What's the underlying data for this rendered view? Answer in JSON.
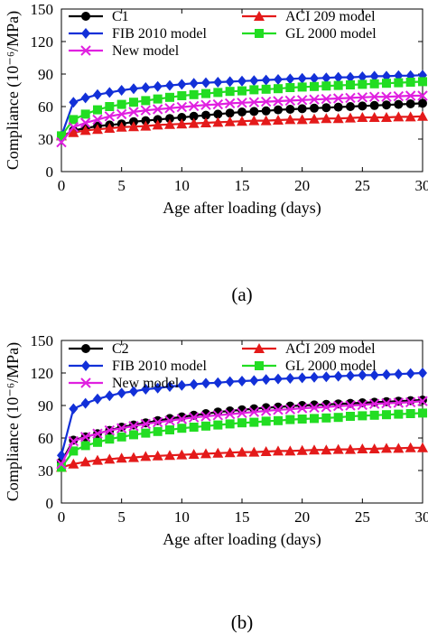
{
  "chart_data": [
    {
      "type": "line",
      "caption": "(a)",
      "xlabel": "Age after loading (days)",
      "ylabel": "Compliance (10⁻⁶/MPa)",
      "xlim": [
        0,
        30
      ],
      "ylim": [
        0,
        150
      ],
      "xticks": [
        0,
        5,
        10,
        15,
        20,
        25,
        30
      ],
      "yticks": [
        0,
        30,
        60,
        90,
        120,
        150
      ],
      "grid": false,
      "legend": "top, two columns",
      "series": [
        {
          "name": "C1",
          "color": "#000000",
          "marker": "circle",
          "x": [
            0,
            1,
            2,
            3,
            4,
            5,
            6,
            7,
            8,
            9,
            10,
            11,
            12,
            13,
            14,
            15,
            16,
            17,
            18,
            19,
            20,
            21,
            22,
            23,
            24,
            25,
            26,
            27,
            28,
            29,
            30
          ],
          "y": [
            32,
            38,
            40,
            42,
            43,
            44,
            46,
            47,
            48,
            49,
            50,
            51,
            52,
            53,
            54,
            55,
            55.5,
            56,
            57,
            57.5,
            58,
            58.5,
            59,
            59.5,
            60,
            60.5,
            61,
            61.5,
            62,
            62.5,
            63
          ]
        },
        {
          "name": "ACI 209 model",
          "color": "#e41a1a",
          "marker": "triangle",
          "x": [
            0,
            1,
            2,
            3,
            4,
            5,
            6,
            7,
            8,
            9,
            10,
            11,
            12,
            13,
            14,
            15,
            16,
            17,
            18,
            19,
            20,
            21,
            22,
            23,
            24,
            25,
            26,
            27,
            28,
            29,
            30
          ],
          "y": [
            33,
            36,
            38,
            39,
            40,
            41,
            41.5,
            42,
            43,
            43.5,
            44,
            44.5,
            45,
            45.5,
            46,
            46.5,
            47,
            47,
            47.5,
            48,
            48,
            48.5,
            49,
            49,
            49.5,
            50,
            50,
            50,
            50.5,
            50.5,
            51
          ]
        },
        {
          "name": "FIB 2010 model",
          "color": "#1230d8",
          "marker": "diamond",
          "x": [
            0,
            1,
            2,
            3,
            4,
            5,
            6,
            7,
            8,
            9,
            10,
            11,
            12,
            13,
            14,
            15,
            16,
            17,
            18,
            19,
            20,
            21,
            22,
            23,
            24,
            25,
            26,
            27,
            28,
            29,
            30
          ],
          "y": [
            33,
            64,
            68,
            71,
            73,
            75,
            76.5,
            77.5,
            78.5,
            79.5,
            80.5,
            81.5,
            82,
            82.5,
            83,
            83.5,
            84,
            84.5,
            85,
            85.5,
            86,
            86,
            86.5,
            87,
            87,
            87.5,
            88,
            88,
            88.5,
            88.5,
            89
          ]
        },
        {
          "name": "GL 2000 model",
          "color": "#22dd22",
          "marker": "square",
          "x": [
            0,
            1,
            2,
            3,
            4,
            5,
            6,
            7,
            8,
            9,
            10,
            11,
            12,
            13,
            14,
            15,
            16,
            17,
            18,
            19,
            20,
            21,
            22,
            23,
            24,
            25,
            26,
            27,
            28,
            29,
            30
          ],
          "y": [
            33,
            48,
            53,
            57,
            60,
            62,
            64,
            65.5,
            67,
            68.5,
            70,
            71,
            72,
            73,
            74,
            74.5,
            75.5,
            76,
            76.5,
            77.5,
            78,
            78.5,
            79,
            79.5,
            80,
            80.5,
            81,
            81.5,
            82,
            82.5,
            83
          ]
        },
        {
          "name": "New model",
          "color": "#e020e0",
          "marker": "x",
          "x": [
            0,
            1,
            2,
            3,
            4,
            5,
            6,
            7,
            8,
            9,
            10,
            11,
            12,
            13,
            14,
            15,
            16,
            17,
            18,
            19,
            20,
            21,
            22,
            23,
            24,
            25,
            26,
            27,
            28,
            29,
            30
          ],
          "y": [
            27,
            41,
            45,
            48,
            51,
            53,
            55,
            56.5,
            57.5,
            58.5,
            59.5,
            60.5,
            61.5,
            62,
            63,
            63.5,
            64,
            64.5,
            65,
            65.5,
            66,
            66.5,
            67,
            67.5,
            68,
            68.5,
            69,
            69,
            69.5,
            70,
            70
          ]
        }
      ]
    },
    {
      "type": "line",
      "caption": "(b)",
      "xlabel": "Age after loading (days)",
      "ylabel": "Compliance (10⁻⁶/MPa)",
      "xlim": [
        0,
        30
      ],
      "ylim": [
        0,
        150
      ],
      "xticks": [
        0,
        5,
        10,
        15,
        20,
        25,
        30
      ],
      "yticks": [
        0,
        30,
        60,
        90,
        120,
        150
      ],
      "grid": false,
      "legend": "top, two columns",
      "series": [
        {
          "name": "C2",
          "color": "#000000",
          "marker": "circle",
          "x": [
            0,
            1,
            2,
            3,
            4,
            5,
            6,
            7,
            8,
            9,
            10,
            11,
            12,
            13,
            14,
            15,
            16,
            17,
            18,
            19,
            20,
            21,
            22,
            23,
            24,
            25,
            26,
            27,
            28,
            29,
            30
          ],
          "y": [
            38,
            58,
            61,
            64,
            67,
            70,
            72,
            74,
            76,
            78,
            79.5,
            81,
            82.5,
            84,
            85,
            86,
            87,
            88,
            88.5,
            89.5,
            90,
            90.5,
            91,
            91.5,
            92,
            92.5,
            93,
            93.5,
            94,
            94.5,
            95
          ]
        },
        {
          "name": "ACI 209 model",
          "color": "#e41a1a",
          "marker": "triangle",
          "x": [
            0,
            1,
            2,
            3,
            4,
            5,
            6,
            7,
            8,
            9,
            10,
            11,
            12,
            13,
            14,
            15,
            16,
            17,
            18,
            19,
            20,
            21,
            22,
            23,
            24,
            25,
            26,
            27,
            28,
            29,
            30
          ],
          "y": [
            33,
            36,
            38,
            39.5,
            40.5,
            41.5,
            42,
            43,
            43.5,
            44,
            44.5,
            45,
            45.5,
            46,
            46.5,
            47,
            47,
            47.5,
            48,
            48,
            48.5,
            49,
            49,
            49.5,
            49.5,
            50,
            50,
            50.5,
            50.5,
            51,
            51
          ]
        },
        {
          "name": "FIB 2010 model",
          "color": "#1230d8",
          "marker": "diamond",
          "x": [
            0,
            1,
            2,
            3,
            4,
            5,
            6,
            7,
            8,
            9,
            10,
            11,
            12,
            13,
            14,
            15,
            16,
            17,
            18,
            19,
            20,
            21,
            22,
            23,
            24,
            25,
            26,
            27,
            28,
            29,
            30
          ],
          "y": [
            44,
            87,
            92,
            96,
            99,
            101.5,
            103,
            105,
            106,
            107.5,
            108.5,
            109.5,
            110.5,
            111,
            112,
            112.5,
            113,
            114,
            114.5,
            115,
            115.5,
            116,
            116.5,
            117,
            117.5,
            118,
            118,
            118.5,
            119,
            119.5,
            120
          ]
        },
        {
          "name": "GL 2000 model",
          "color": "#22dd22",
          "marker": "square",
          "x": [
            0,
            1,
            2,
            3,
            4,
            5,
            6,
            7,
            8,
            9,
            10,
            11,
            12,
            13,
            14,
            15,
            16,
            17,
            18,
            19,
            20,
            21,
            22,
            23,
            24,
            25,
            26,
            27,
            28,
            29,
            30
          ],
          "y": [
            33,
            48,
            53,
            56,
            59,
            61,
            63,
            64.5,
            66,
            67.5,
            69,
            70,
            71,
            72,
            73,
            74,
            74.5,
            75.5,
            76,
            77,
            77.5,
            78,
            78.5,
            79,
            80,
            80.5,
            81,
            81.5,
            82,
            82.5,
            83
          ]
        },
        {
          "name": "New model",
          "color": "#e020e0",
          "marker": "x",
          "x": [
            0,
            1,
            2,
            3,
            4,
            5,
            6,
            7,
            8,
            9,
            10,
            11,
            12,
            13,
            14,
            15,
            16,
            17,
            18,
            19,
            20,
            21,
            22,
            23,
            24,
            25,
            26,
            27,
            28,
            29,
            30
          ],
          "y": [
            36,
            57,
            61,
            64,
            67,
            69,
            71,
            73,
            74.5,
            76,
            77.5,
            79,
            80,
            81,
            82,
            83,
            84,
            85,
            86,
            86.5,
            87.5,
            88,
            88.5,
            89.5,
            90,
            90.5,
            91.5,
            92,
            92.5,
            93,
            94
          ]
        }
      ]
    }
  ]
}
